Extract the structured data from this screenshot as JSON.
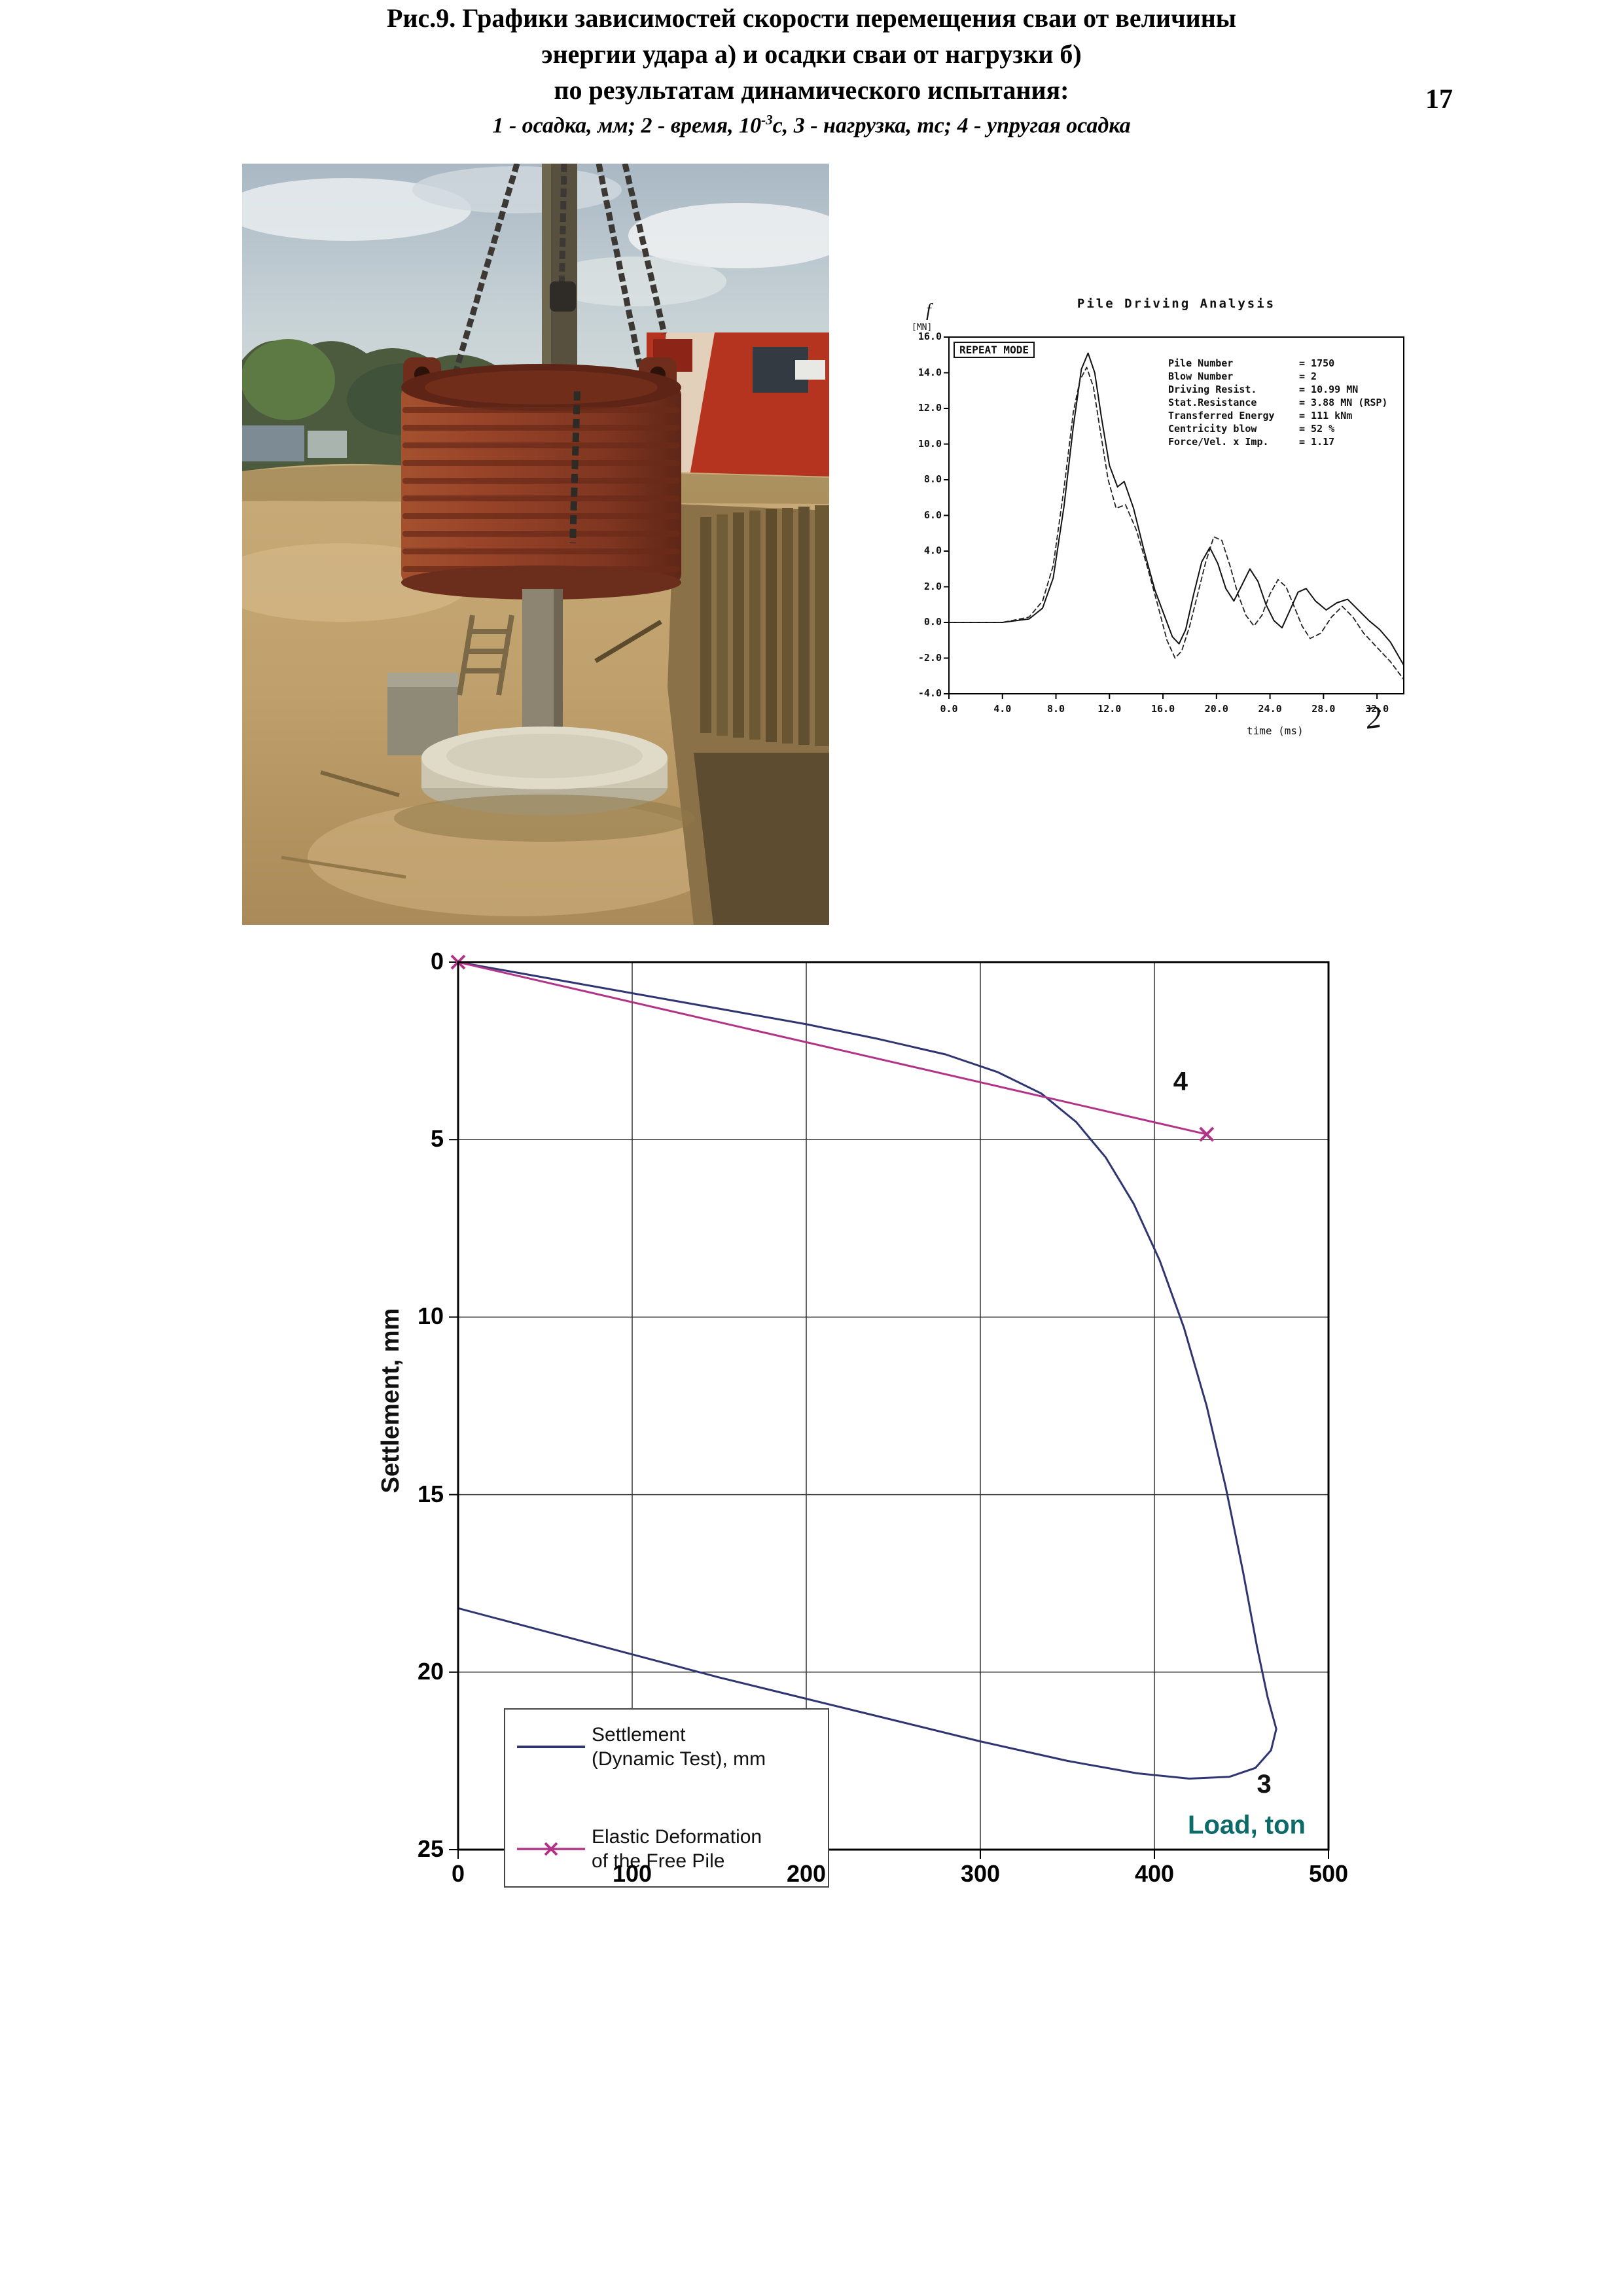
{
  "page": {
    "number": "17"
  },
  "pda": {
    "title": "Pile Driving Analysis",
    "mode_label": "REPEAT MODE",
    "axis_corner_label": "f",
    "axis_unit_label": "[MN]",
    "readouts": [
      {
        "label": "Pile Number",
        "value": "=  1750"
      },
      {
        "label": "Blow Number",
        "value": "=  2"
      },
      {
        "label": "Driving Resist.",
        "value": "=  10.99 MN"
      },
      {
        "label": "Stat.Resistance",
        "value": "=  3.88 MN (RSP)"
      },
      {
        "label": "Transferred Energy",
        "value": "=  111 kNm"
      },
      {
        "label": "Centricity blow",
        "value": "=  52 %"
      },
      {
        "label": "Force/Vel. x Imp.",
        "value": "=  1.17"
      }
    ],
    "x_axis_label": "time (ms)",
    "handwritten_mark": "2"
  },
  "chart_data": [
    {
      "type": "line",
      "title": "Pile Driving Analysis",
      "xlabel": "time (ms)",
      "ylabel": "f [MN]",
      "xlim": [
        0,
        34
      ],
      "ylim": [
        -4,
        16
      ],
      "grid": false,
      "xticks": [
        "0.0",
        "4.0",
        "8.0",
        "12.0",
        "16.0",
        "20.0",
        "24.0",
        "28.0",
        "32.0"
      ],
      "yticks": [
        "16.0",
        "14.0",
        "12.0",
        "10.0",
        "8.0",
        "6.0",
        "4.0",
        "2.0",
        "0.0",
        "-2.0",
        "-4.0"
      ],
      "series": [
        {
          "name": "force",
          "color": "#111111",
          "width": 2,
          "points": [
            [
              0,
              0
            ],
            [
              4,
              0
            ],
            [
              6,
              0.2
            ],
            [
              7,
              0.8
            ],
            [
              7.8,
              2.5
            ],
            [
              8.6,
              6.5
            ],
            [
              9.3,
              11
            ],
            [
              9.9,
              14.2
            ],
            [
              10.4,
              15.1
            ],
            [
              10.9,
              14
            ],
            [
              11.4,
              11.5
            ],
            [
              12,
              8.8
            ],
            [
              12.6,
              7.6
            ],
            [
              13.1,
              7.9
            ],
            [
              13.8,
              6.4
            ],
            [
              14.6,
              4
            ],
            [
              15.4,
              1.8
            ],
            [
              16.1,
              0.4
            ],
            [
              16.7,
              -0.8
            ],
            [
              17.2,
              -1.2
            ],
            [
              17.7,
              -0.4
            ],
            [
              18.3,
              1.6
            ],
            [
              18.9,
              3.4
            ],
            [
              19.5,
              4.2
            ],
            [
              20.1,
              3.3
            ],
            [
              20.7,
              1.9
            ],
            [
              21.3,
              1.2
            ],
            [
              21.9,
              2.1
            ],
            [
              22.5,
              3
            ],
            [
              23.1,
              2.3
            ],
            [
              23.7,
              1
            ],
            [
              24.3,
              0.1
            ],
            [
              24.9,
              -0.3
            ],
            [
              25.5,
              0.7
            ],
            [
              26.1,
              1.7
            ],
            [
              26.7,
              1.9
            ],
            [
              27.4,
              1.2
            ],
            [
              28.2,
              0.7
            ],
            [
              29,
              1.1
            ],
            [
              29.8,
              1.3
            ],
            [
              30.6,
              0.7
            ],
            [
              31.4,
              0.1
            ],
            [
              32.2,
              -0.4
            ],
            [
              33,
              -1.1
            ],
            [
              34,
              -2.4
            ]
          ]
        },
        {
          "name": "velocity",
          "color": "#222222",
          "width": 1.8,
          "dash": "7 5",
          "points": [
            [
              0,
              0
            ],
            [
              4,
              0
            ],
            [
              6,
              0.3
            ],
            [
              7,
              1.2
            ],
            [
              7.8,
              3.2
            ],
            [
              8.6,
              7.5
            ],
            [
              9.3,
              11.8
            ],
            [
              9.8,
              13.6
            ],
            [
              10.3,
              14.3
            ],
            [
              10.8,
              13.2
            ],
            [
              11.3,
              10.8
            ],
            [
              11.9,
              8
            ],
            [
              12.5,
              6.4
            ],
            [
              13.2,
              6.6
            ],
            [
              14,
              5.2
            ],
            [
              14.8,
              3.2
            ],
            [
              15.6,
              1
            ],
            [
              16.3,
              -1
            ],
            [
              16.9,
              -2
            ],
            [
              17.4,
              -1.6
            ],
            [
              18,
              -0.2
            ],
            [
              18.6,
              1.6
            ],
            [
              19.2,
              3.4
            ],
            [
              19.8,
              4.8
            ],
            [
              20.4,
              4.6
            ],
            [
              21,
              3.2
            ],
            [
              21.6,
              1.6
            ],
            [
              22.2,
              0.4
            ],
            [
              22.8,
              -0.2
            ],
            [
              23.4,
              0.4
            ],
            [
              24,
              1.6
            ],
            [
              24.6,
              2.4
            ],
            [
              25.2,
              2
            ],
            [
              25.8,
              0.9
            ],
            [
              26.4,
              -0.2
            ],
            [
              27,
              -0.9
            ],
            [
              27.8,
              -0.6
            ],
            [
              28.6,
              0.3
            ],
            [
              29.4,
              0.9
            ],
            [
              30.2,
              0.3
            ],
            [
              31,
              -0.6
            ],
            [
              32,
              -1.4
            ],
            [
              33,
              -2.2
            ],
            [
              34,
              -3.2
            ]
          ]
        }
      ]
    },
    {
      "type": "line",
      "xlabel": "Load, ton",
      "ylabel": "Settlement, mm",
      "xlim": [
        0,
        500
      ],
      "ylim": [
        0,
        25
      ],
      "y_inverted": true,
      "grid": true,
      "xticks": [
        "0",
        "100",
        "200",
        "300",
        "400",
        "500"
      ],
      "yticks": [
        "0",
        "5",
        "10",
        "15",
        "20",
        "25"
      ],
      "series": [
        {
          "name": "Settlement (Dynamic Test), mm",
          "color": "#2e3570",
          "width": 3,
          "points": [
            [
              0,
              0
            ],
            [
              40,
              0.35
            ],
            [
              80,
              0.7
            ],
            [
              120,
              1.05
            ],
            [
              160,
              1.4
            ],
            [
              200,
              1.75
            ],
            [
              240,
              2.15
            ],
            [
              280,
              2.6
            ],
            [
              310,
              3.1
            ],
            [
              335,
              3.7
            ],
            [
              355,
              4.5
            ],
            [
              372,
              5.5
            ],
            [
              388,
              6.8
            ],
            [
              403,
              8.4
            ],
            [
              417,
              10.3
            ],
            [
              430,
              12.5
            ],
            [
              441,
              14.8
            ],
            [
              451,
              17.2
            ],
            [
              459,
              19.3
            ],
            [
              465,
              20.7
            ],
            [
              470,
              21.6
            ],
            [
              467,
              22.2
            ],
            [
              458,
              22.7
            ],
            [
              443,
              22.95
            ],
            [
              420,
              23.0
            ],
            [
              390,
              22.85
            ],
            [
              350,
              22.5
            ],
            [
              300,
              21.95
            ],
            [
              250,
              21.35
            ],
            [
              200,
              20.75
            ],
            [
              150,
              20.15
            ],
            [
              100,
              19.5
            ],
            [
              50,
              18.85
            ],
            [
              0,
              18.2
            ]
          ]
        },
        {
          "name": "Elastic Deformation of the Free Pile",
          "color": "#b23488",
          "width": 3,
          "marker": "x",
          "points": [
            [
              0,
              0
            ],
            [
              430,
              4.85
            ]
          ]
        }
      ],
      "annotations": [
        {
          "text": "4",
          "x": 415,
          "y": 3.6,
          "color": "#111111",
          "size": 40,
          "bold": true
        },
        {
          "text": "3",
          "x": 463,
          "y": 23.4,
          "color": "#111111",
          "size": 40,
          "bold": true
        },
        {
          "text": "Load, ton",
          "x": 453,
          "y": 24.55,
          "color": "#0c6b68",
          "size": 40,
          "bold": true
        }
      ]
    }
  ],
  "legend": {
    "entries": [
      {
        "label_line1": "Settlement",
        "label_line2": "(Dynamic Test), mm"
      },
      {
        "label_line1": "Elastic Deformation",
        "label_line2": "of the Free Pile"
      }
    ]
  },
  "caption": {
    "line1": "Рис.9. Графики зависимостей скорости перемещения сваи от величины",
    "line2": "энергии удара а)  и осадки сваи от нагрузки б)",
    "line3": "по результатам динамического испытания:",
    "line4_prefix": "1 - осадка, мм; 2 - время, 10",
    "line4_sup": "-3",
    "line4_suffix": "с, 3 - нагрузка, тс; 4 - упругая осадка"
  }
}
